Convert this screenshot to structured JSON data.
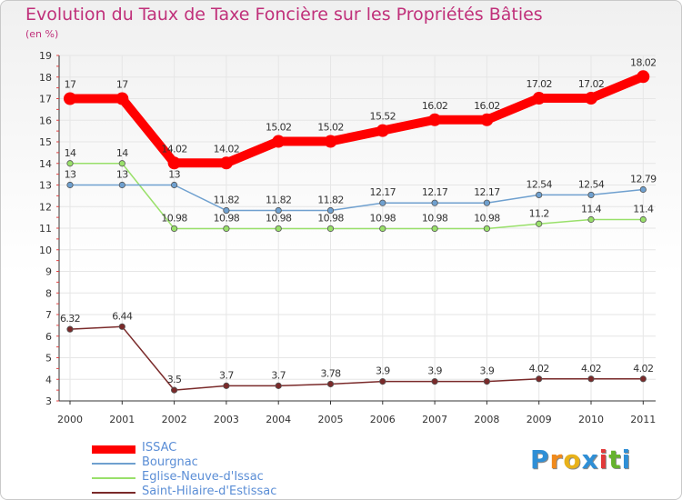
{
  "title": "Evolution du Taux de Taxe Foncière sur les Propriétés Bâties",
  "unit_label": "(en %)",
  "logo_text": "Proxiti",
  "chart_data": {
    "type": "line",
    "title": "Evolution du Taux de Taxe Foncière sur les Propriétés Bâties",
    "ylabel": "(en %)",
    "xlabel": "",
    "x": [
      "2000",
      "2001",
      "2002",
      "2003",
      "2004",
      "2005",
      "2006",
      "2007",
      "2008",
      "2009",
      "2010",
      "2011"
    ],
    "ylim": [
      3,
      19
    ],
    "yticks": [
      "3",
      "4",
      "5",
      "6",
      "7",
      "8",
      "9",
      "10",
      "11",
      "12",
      "13",
      "14",
      "15",
      "16",
      "17",
      "18",
      "19"
    ],
    "legend_position": "bottom-left",
    "series": [
      {
        "name": "ISSAC",
        "color": "#ff0000",
        "values": [
          17,
          17,
          14.02,
          14.02,
          15.02,
          15.02,
          15.52,
          16.02,
          16.02,
          17.02,
          17.02,
          18.02
        ],
        "labels": [
          "17",
          "17",
          "14.02",
          "14.02",
          "15.02",
          "15.02",
          "15.52",
          "16.02",
          "16.02",
          "17.02",
          "17.02",
          "18.02"
        ]
      },
      {
        "name": "Bourgnac",
        "color": "#6fa0cf",
        "values": [
          13,
          13,
          13,
          11.82,
          11.82,
          11.82,
          12.17,
          12.17,
          12.17,
          12.54,
          12.54,
          12.79
        ],
        "labels": [
          "13",
          "13",
          "13",
          "11.82",
          "11.82",
          "11.82",
          "12.17",
          "12.17",
          "12.17",
          "12.54",
          "12.54",
          "12.79"
        ]
      },
      {
        "name": "Eglise-Neuve-d'Issac",
        "color": "#99e06a",
        "values": [
          14,
          14,
          10.98,
          10.98,
          10.98,
          10.98,
          10.98,
          10.98,
          10.98,
          11.2,
          11.4,
          11.4
        ],
        "labels": [
          "14",
          "14",
          "10.98",
          "10.98",
          "10.98",
          "10.98",
          "10.98",
          "10.98",
          "10.98",
          "11.2",
          "11.4",
          "11.4"
        ]
      },
      {
        "name": "Saint-Hilaire-d'Estissac",
        "color": "#7a2a2a",
        "values": [
          6.32,
          6.44,
          3.5,
          3.7,
          3.7,
          3.78,
          3.9,
          3.9,
          3.9,
          4.02,
          4.02,
          4.02
        ],
        "labels": [
          "6.32",
          "6.44",
          "3.5",
          "3.7",
          "3.7",
          "3.78",
          "3.9",
          "3.9",
          "3.9",
          "4.02",
          "4.02",
          "4.02"
        ]
      }
    ]
  }
}
